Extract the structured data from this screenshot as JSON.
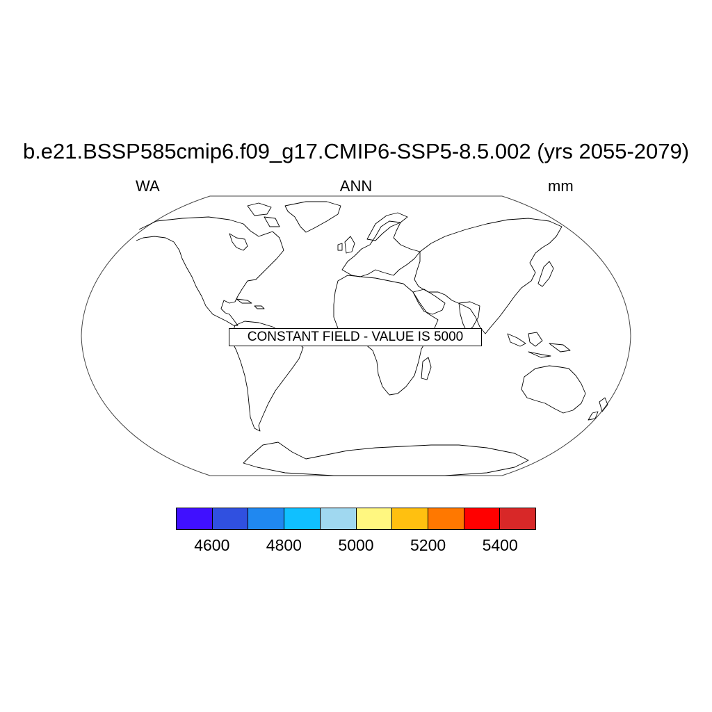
{
  "header": {
    "title": "b.e21.BSSP585cmip6.f09_g17.CMIP6-SSP5-8.5.002 (yrs 2055-2079)",
    "left": "WA",
    "center": "ANN",
    "right": "mm"
  },
  "map": {
    "projection": "robinson",
    "coastlines": true,
    "notice": "CONSTANT FIELD - VALUE IS 5000"
  },
  "colorbar": {
    "colors": [
      "#4010ff",
      "#3050e0",
      "#2088f0",
      "#10c0ff",
      "#a0d8f0",
      "#fff780",
      "#ffc010",
      "#ff7800",
      "#ff0000",
      "#d82828"
    ],
    "labels": [
      "4600",
      "4800",
      "5000",
      "5200",
      "5400"
    ]
  }
}
